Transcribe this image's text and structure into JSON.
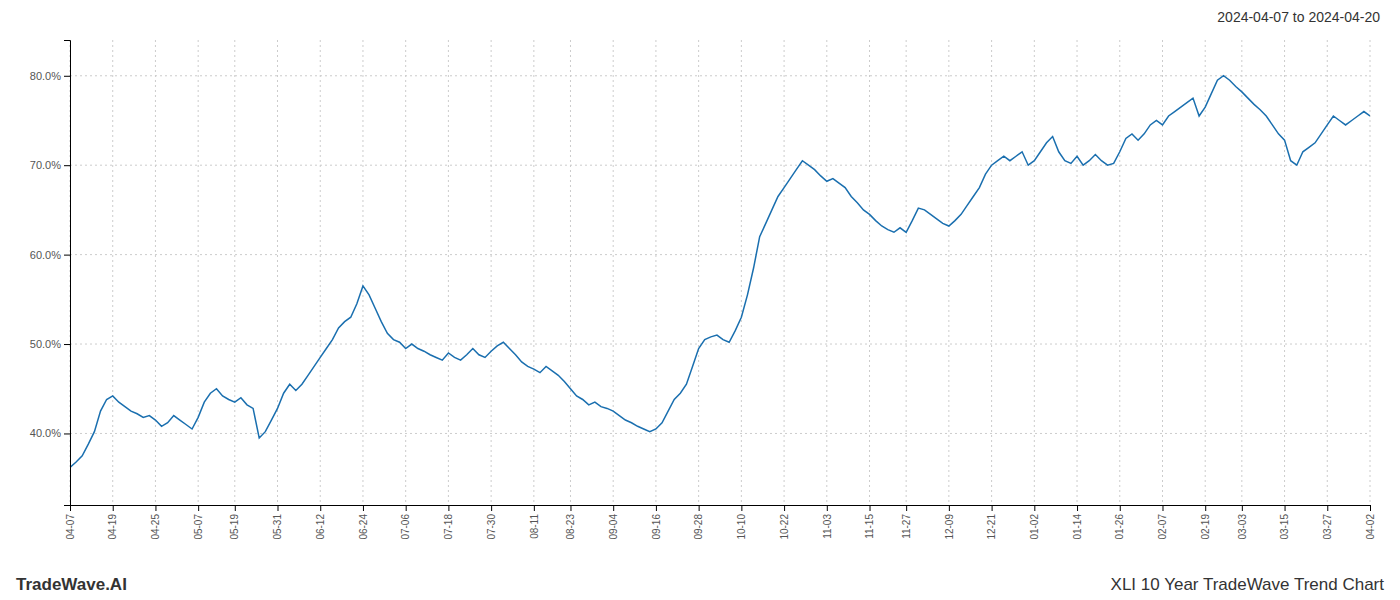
{
  "chart_data": {
    "type": "line",
    "annotations": [
      "2024-04-07 to 2024-04-20",
      "TradeWave.AI",
      "XLI 10 Year TradeWave Trend Chart"
    ],
    "color": "#1a6faf",
    "grid": true,
    "ylim": [
      32,
      84
    ],
    "yticks": [
      {
        "value": 40,
        "label": "40.0%"
      },
      {
        "value": 50,
        "label": "50.0%"
      },
      {
        "value": 60,
        "label": "60.0%"
      },
      {
        "value": 70,
        "label": "70.0%"
      },
      {
        "value": 80,
        "label": "80.0%"
      }
    ],
    "categories": [
      "04-07",
      null,
      null,
      null,
      null,
      null,
      null,
      "04-19",
      null,
      null,
      null,
      null,
      null,
      null,
      "04-25",
      null,
      null,
      null,
      null,
      null,
      null,
      "05-07",
      null,
      null,
      null,
      null,
      null,
      "05-19",
      null,
      null,
      null,
      null,
      null,
      null,
      "05-31",
      null,
      null,
      null,
      null,
      null,
      null,
      "06-12",
      null,
      null,
      null,
      null,
      null,
      null,
      "06-24",
      null,
      null,
      null,
      null,
      null,
      null,
      "07-06",
      null,
      null,
      null,
      null,
      null,
      null,
      "07-18",
      null,
      null,
      null,
      null,
      null,
      null,
      "07-30",
      null,
      null,
      null,
      null,
      null,
      null,
      "08-11",
      null,
      null,
      null,
      null,
      null,
      "08-23",
      null,
      null,
      null,
      null,
      null,
      null,
      "09-04",
      null,
      null,
      null,
      null,
      null,
      null,
      "09-16",
      null,
      null,
      null,
      null,
      null,
      null,
      "09-28",
      null,
      null,
      null,
      null,
      null,
      null,
      "10-10",
      null,
      null,
      null,
      null,
      null,
      null,
      "10-22",
      null,
      null,
      null,
      null,
      null,
      null,
      "11-03",
      null,
      null,
      null,
      null,
      null,
      null,
      "11-15",
      null,
      null,
      null,
      null,
      null,
      "11-27",
      null,
      null,
      null,
      null,
      null,
      null,
      "12-09",
      null,
      null,
      null,
      null,
      null,
      null,
      "12-21",
      null,
      null,
      null,
      null,
      null,
      null,
      "01-02",
      null,
      null,
      null,
      null,
      null,
      null,
      "01-14",
      null,
      null,
      null,
      null,
      null,
      null,
      "01-26",
      null,
      null,
      null,
      null,
      null,
      null,
      "02-07",
      null,
      null,
      null,
      null,
      null,
      null,
      "02-19",
      null,
      null,
      null,
      null,
      null,
      "03-03",
      null,
      null,
      null,
      null,
      null,
      null,
      "03-15",
      null,
      null,
      null,
      null,
      null,
      null,
      "03-27",
      null,
      null,
      null,
      null,
      null,
      null,
      "04-02"
    ],
    "values": [
      36.2,
      36.8,
      37.5,
      38.8,
      40.2,
      42.5,
      43.8,
      44.2,
      43.5,
      43.0,
      42.5,
      42.2,
      41.8,
      42.0,
      41.5,
      40.8,
      41.2,
      42.0,
      41.5,
      41.0,
      40.5,
      41.8,
      43.5,
      44.5,
      45.0,
      44.2,
      43.8,
      43.5,
      44.0,
      43.2,
      42.8,
      39.5,
      40.2,
      41.5,
      42.8,
      44.5,
      45.5,
      44.8,
      45.5,
      46.5,
      47.5,
      48.5,
      49.5,
      50.5,
      51.8,
      52.5,
      53.0,
      54.5,
      56.5,
      55.5,
      54.0,
      52.5,
      51.2,
      50.5,
      50.2,
      49.5,
      50.0,
      49.5,
      49.2,
      48.8,
      48.5,
      48.2,
      49.0,
      48.5,
      48.2,
      48.8,
      49.5,
      48.8,
      48.5,
      49.2,
      49.8,
      50.2,
      49.5,
      48.8,
      48.0,
      47.5,
      47.2,
      46.8,
      47.5,
      47.0,
      46.5,
      45.8,
      45.0,
      44.2,
      43.8,
      43.2,
      43.5,
      43.0,
      42.8,
      42.5,
      42.0,
      41.5,
      41.2,
      40.8,
      40.5,
      40.2,
      40.5,
      41.2,
      42.5,
      43.8,
      44.5,
      45.5,
      47.5,
      49.5,
      50.5,
      50.8,
      51.0,
      50.5,
      50.2,
      51.5,
      53.0,
      55.5,
      58.5,
      62.0,
      63.5,
      65.0,
      66.5,
      67.5,
      68.5,
      69.5,
      70.5,
      70.0,
      69.5,
      68.8,
      68.2,
      68.5,
      68.0,
      67.5,
      66.5,
      65.8,
      65.0,
      64.5,
      63.8,
      63.2,
      62.8,
      62.5,
      63.0,
      62.5,
      63.8,
      65.2,
      65.0,
      64.5,
      64.0,
      63.5,
      63.2,
      63.8,
      64.5,
      65.5,
      66.5,
      67.5,
      69.0,
      70.0,
      70.5,
      71.0,
      70.5,
      71.0,
      71.5,
      70.0,
      70.5,
      71.5,
      72.5,
      73.2,
      71.5,
      70.5,
      70.2,
      71.0,
      70.0,
      70.5,
      71.2,
      70.5,
      70.0,
      70.2,
      71.5,
      73.0,
      73.5,
      72.8,
      73.5,
      74.5,
      75.0,
      74.5,
      75.5,
      76.0,
      76.5,
      77.0,
      77.5,
      75.5,
      76.5,
      78.0,
      79.5,
      80.0,
      79.5,
      78.8,
      78.2,
      77.5,
      76.8,
      76.2,
      75.5,
      74.5,
      73.5,
      72.8,
      70.5,
      70.0,
      71.5,
      72.0,
      72.5,
      73.5,
      74.5,
      75.5,
      75.0,
      74.5,
      75.0,
      75.5,
      76.0,
      75.5
    ]
  }
}
